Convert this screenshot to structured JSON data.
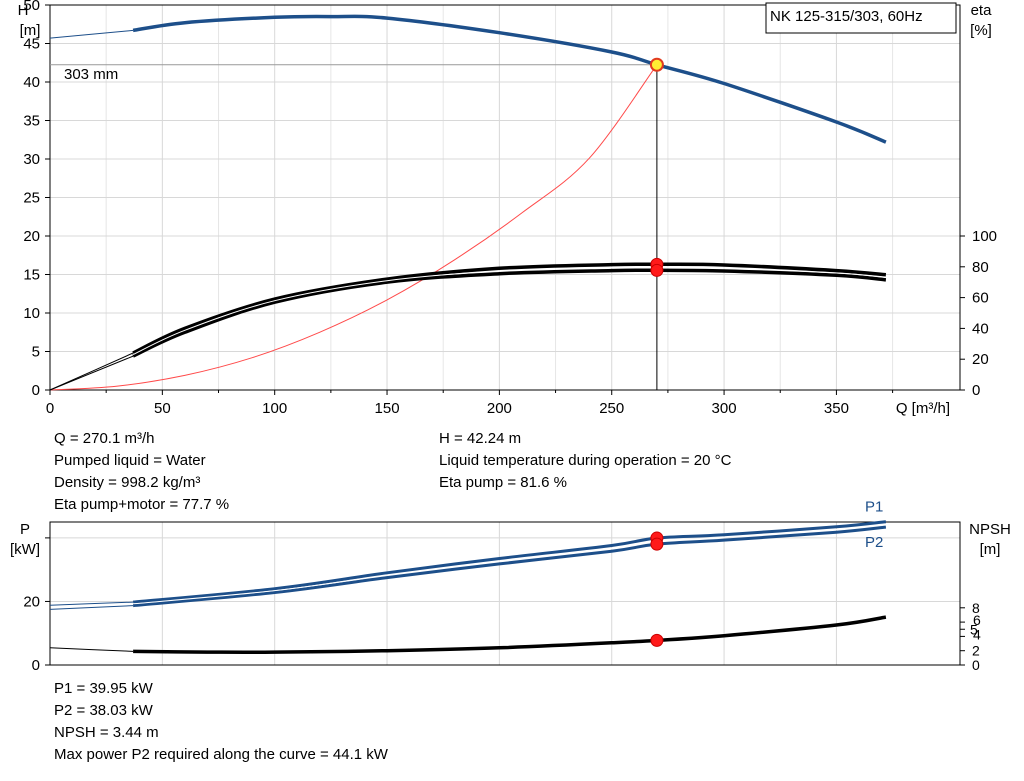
{
  "chart_data": [
    {
      "type": "line",
      "title": "NK 125-315/303, 60Hz",
      "x_axis": {
        "label": "Q [m³/h]",
        "range": [
          0,
          405
        ],
        "ticks": [
          0,
          50,
          100,
          150,
          200,
          250,
          300,
          350
        ]
      },
      "y_left": {
        "label": "H",
        "unit": "[m]",
        "range": [
          0,
          50
        ],
        "ticks": [
          0,
          5,
          10,
          15,
          20,
          25,
          30,
          35,
          40,
          45,
          50
        ]
      },
      "y_right": {
        "label": "eta",
        "unit": "[%]",
        "range": [
          0,
          250
        ],
        "ticks": [
          0,
          20,
          40,
          60,
          80,
          100
        ]
      },
      "grid": true,
      "curve_label": "303 mm",
      "series": [
        {
          "id": "head",
          "axis": "left",
          "color": "#1d4f8a",
          "x": [
            37,
            60,
            100,
            125,
            150,
            200,
            250,
            270.1,
            300,
            350,
            372
          ],
          "y": [
            46.7,
            47.7,
            48.4,
            48.5,
            48.3,
            46.4,
            43.9,
            42.24,
            39.8,
            34.8,
            32.2
          ]
        },
        {
          "id": "head-extension",
          "axis": "left",
          "color": "#1d4f8a",
          "x": [
            0,
            37
          ],
          "y": [
            45.7,
            46.7
          ]
        },
        {
          "id": "eta-pump",
          "axis": "right",
          "color": "#000000",
          "x": [
            37,
            60,
            100,
            150,
            200,
            250,
            270.1,
            300,
            350,
            372
          ],
          "y": [
            24,
            40,
            59,
            72,
            79,
            81.4,
            81.6,
            81.2,
            77.5,
            74.8
          ]
        },
        {
          "id": "eta-pump-motor",
          "axis": "right",
          "color": "#000000",
          "x": [
            37,
            60,
            100,
            150,
            200,
            250,
            270.1,
            300,
            350,
            372
          ],
          "y": [
            22,
            37.5,
            57,
            70,
            75.5,
            77.5,
            77.7,
            77.3,
            74.5,
            71.5
          ]
        },
        {
          "id": "eta-extension",
          "axis": "right",
          "color": "#000000",
          "x": [
            0,
            37
          ],
          "y": [
            0,
            24
          ]
        },
        {
          "id": "system-curve",
          "axis": "left",
          "color": "#ff4a4a",
          "x": [
            0,
            30,
            60,
            90,
            120,
            150,
            180,
            210,
            240,
            270.1
          ],
          "y": [
            0,
            0.5,
            1.9,
            4.2,
            7.5,
            11.7,
            16.9,
            23.0,
            30.1,
            42.24
          ]
        }
      ],
      "duty_point": {
        "x": 270.1,
        "head": 42.24,
        "eta_pump": 81.6,
        "eta_pump_motor": 77.7
      }
    },
    {
      "type": "line",
      "x_axis": {
        "range": [
          0,
          405
        ]
      },
      "y_left": {
        "label": "P",
        "unit": "[kW]",
        "range": [
          0,
          45
        ],
        "ticks": [
          0,
          20
        ]
      },
      "y_right": {
        "label": "NPSH",
        "unit": "[m]",
        "range": [
          0,
          20
        ],
        "ticks": [
          0,
          2,
          4,
          5,
          6,
          8
        ]
      },
      "grid": true,
      "series": [
        {
          "id": "P1",
          "name": "P1",
          "axis": "left",
          "color": "#1d4f8a",
          "x": [
            37,
            100,
            150,
            200,
            250,
            270.1,
            300,
            350,
            372
          ],
          "y": [
            19.8,
            24.0,
            29.0,
            33.5,
            37.6,
            39.95,
            41.0,
            43.5,
            45.1
          ]
        },
        {
          "id": "P2",
          "name": "P2",
          "axis": "left",
          "color": "#1d4f8a",
          "x": [
            37,
            100,
            150,
            200,
            250,
            270.1,
            300,
            350,
            372
          ],
          "y": [
            18.7,
            22.8,
            27.5,
            31.8,
            35.8,
            38.03,
            39.3,
            41.8,
            43.4
          ]
        },
        {
          "id": "P1-extension",
          "axis": "left",
          "color": "#1d4f8a",
          "x": [
            0,
            37
          ],
          "y": [
            18.8,
            19.8
          ]
        },
        {
          "id": "P2-extension",
          "axis": "left",
          "color": "#1d4f8a",
          "x": [
            0,
            37
          ],
          "y": [
            17.5,
            18.7
          ]
        },
        {
          "id": "NPSH",
          "axis": "right",
          "color": "#000000",
          "x": [
            37,
            70,
            100,
            150,
            200,
            250,
            270.1,
            300,
            350,
            372
          ],
          "y": [
            1.9,
            1.8,
            1.8,
            2.0,
            2.4,
            3.1,
            3.44,
            4.1,
            5.6,
            6.7
          ]
        },
        {
          "id": "NPSH-extension",
          "axis": "right",
          "color": "#000000",
          "x": [
            0,
            37
          ],
          "y": [
            2.4,
            1.9
          ]
        }
      ],
      "duty_point": {
        "x": 270.1,
        "p1": 39.95,
        "p2": 38.03,
        "npsh": 3.44
      }
    }
  ],
  "info": {
    "col1": [
      "Q = 270.1 m³/h",
      "Pumped liquid = Water",
      "Density = 998.2 kg/m³",
      "Eta pump+motor = 77.7 %"
    ],
    "col2": [
      "H = 42.24 m",
      "Liquid temperature during operation = 20 °C",
      "Eta pump = 81.6 %"
    ],
    "lower": [
      "P1 = 39.95 kW",
      "P2 = 38.03 kW",
      "NPSH = 3.44 m",
      "Max power P2 required along the curve = 44.1 kW"
    ]
  }
}
